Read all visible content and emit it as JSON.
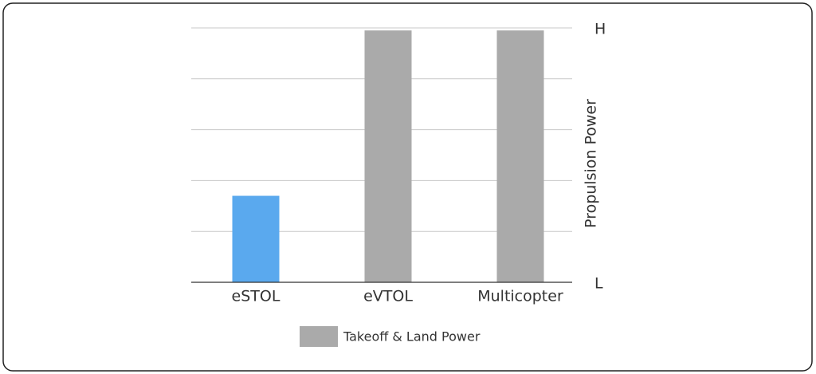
{
  "chart_data": {
    "type": "bar",
    "y_title": "Propulsion Power",
    "categories": [
      "eSTOL",
      "eVTOL",
      "Multicopter"
    ],
    "series": [
      {
        "name": "Takeoff & Land Power",
        "color": "#aaaaaa",
        "bar_colors": [
          "#5aa9ee",
          "#aaaaaa",
          "#aaaaaa"
        ],
        "values": [
          1.7,
          4.95,
          4.95
        ]
      }
    ],
    "ylim": [
      0,
      5
    ],
    "yticks": [
      {
        "value": 0,
        "label": "L"
      },
      {
        "value": 5,
        "label": "H"
      }
    ],
    "ygrid": [
      0,
      1,
      2,
      3,
      4,
      5
    ],
    "grid": true,
    "legend": "bottom"
  }
}
